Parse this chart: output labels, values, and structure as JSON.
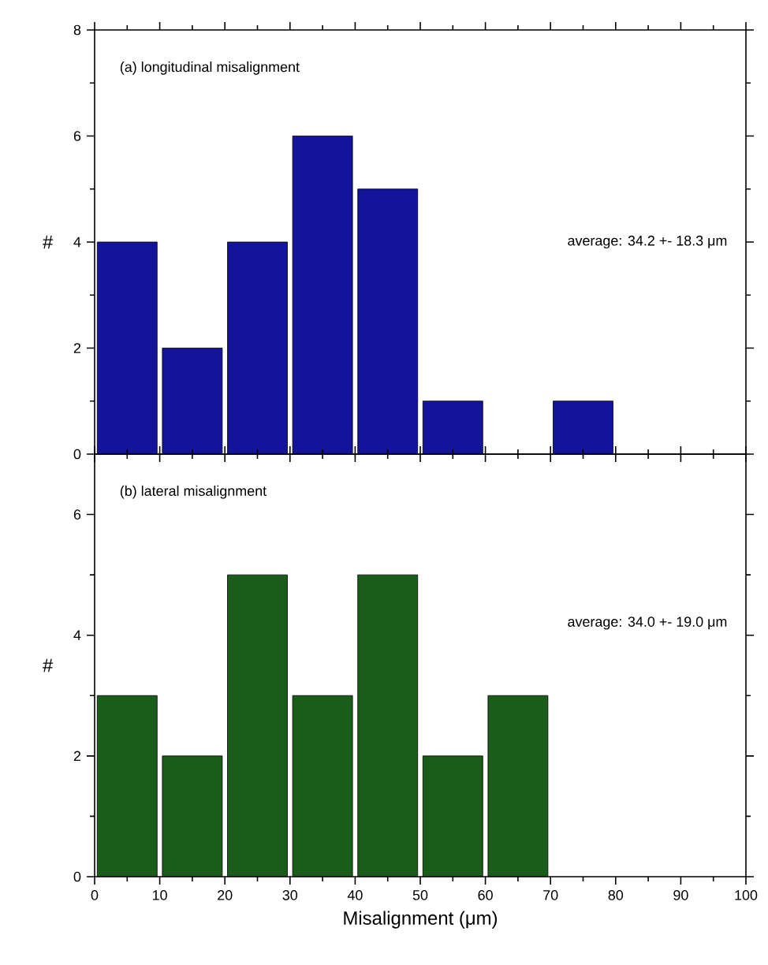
{
  "chart_data": [
    {
      "type": "histogram",
      "bins": [
        0,
        10,
        20,
        30,
        40,
        50,
        60,
        70,
        80,
        90,
        100
      ],
      "values": [
        4,
        2,
        4,
        6,
        5,
        1,
        0,
        1,
        0,
        0
      ],
      "color": "#14149a",
      "ylabel": "#",
      "xlim": [
        0,
        100
      ],
      "xticks": [
        0,
        10,
        20,
        30,
        40,
        50,
        60,
        70,
        80,
        90,
        100
      ],
      "ylim": [
        0,
        8
      ],
      "yticks": [
        0,
        2,
        4,
        6,
        8
      ],
      "tick_labels": "y",
      "annotations": [
        "(a) longitudinal misalignment",
        "average: 34.2 +- 18.3 μm"
      ]
    },
    {
      "type": "histogram",
      "bins": [
        0,
        10,
        20,
        30,
        40,
        50,
        60,
        70,
        80,
        90,
        100
      ],
      "values": [
        3,
        2,
        5,
        3,
        5,
        2,
        3,
        0,
        0,
        0
      ],
      "color": "#1a5c1a",
      "xlabel": "Misalignment (μm)",
      "ylabel": "#",
      "xlim": [
        0,
        100
      ],
      "xticks": [
        0,
        10,
        20,
        30,
        40,
        50,
        60,
        70,
        80,
        90,
        100
      ],
      "ylim": [
        0,
        7
      ],
      "yticks": [
        0,
        2,
        4,
        6
      ],
      "annotations": [
        "(b) lateral misalignment",
        "average: 34.0 +- 19.0 μm"
      ]
    }
  ]
}
